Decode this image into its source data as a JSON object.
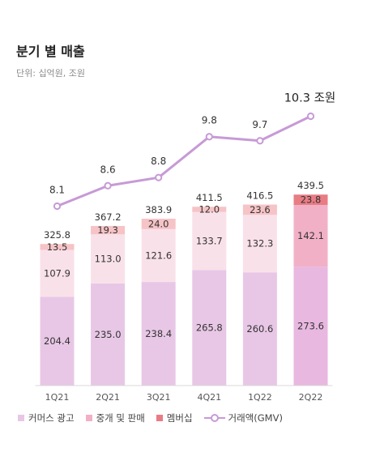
{
  "header": {
    "title": "분기 별 매출",
    "unit": "단위: 십억원, 조원"
  },
  "legend": {
    "commerce": "커머스 광고",
    "brokerage": "중개 및 판매",
    "membership": "멤버십",
    "gmv": "거래액(GMV)"
  },
  "colors": {
    "commerce": "#e8c7e6",
    "commerce_last": "#e8b8e0",
    "brokerage": "#f9e1ea",
    "brokerage_last": "#f2b0c6",
    "membership": "#f6c3c6",
    "membership_last": "#e87c84",
    "gmv_line": "#c79ad6"
  },
  "chart_data": {
    "type": "bar",
    "stacked": true,
    "categories": [
      "1Q21",
      "2Q21",
      "3Q21",
      "4Q21",
      "1Q22",
      "2Q22"
    ],
    "series": [
      {
        "name": "커머스 광고",
        "values": [
          204.4,
          235.0,
          238.4,
          265.8,
          260.6,
          273.6
        ]
      },
      {
        "name": "중개 및 판매",
        "values": [
          107.9,
          113.0,
          121.6,
          133.7,
          132.3,
          142.1
        ]
      },
      {
        "name": "멤버십",
        "values": [
          13.5,
          19.3,
          24.0,
          12.0,
          23.6,
          23.8
        ]
      }
    ],
    "value_labels": {
      "commerce": [
        "204.4",
        "235.0",
        "238.4",
        "265.8",
        "260.6",
        "273.6"
      ],
      "brokerage": [
        "107.9",
        "113.0",
        "121.6",
        "133.7",
        "132.3",
        "142.1"
      ],
      "membership": [
        "13.5",
        "19.3",
        "24.0",
        "12.0",
        "23.6",
        "23.8"
      ]
    },
    "totals": [
      "325.8",
      "367.2",
      "383.9",
      "411.5",
      "416.5",
      "439.5"
    ],
    "line": {
      "name": "거래액(GMV)",
      "values": [
        8.1,
        8.6,
        8.8,
        9.8,
        9.7,
        10.3
      ],
      "labels": [
        "8.1",
        "8.6",
        "8.8",
        "9.8",
        "9.7",
        "10.3 조원"
      ]
    },
    "bar_ylim": [
      0,
      450
    ],
    "line_ylim": [
      5.4,
      10.6
    ],
    "grid": false
  }
}
